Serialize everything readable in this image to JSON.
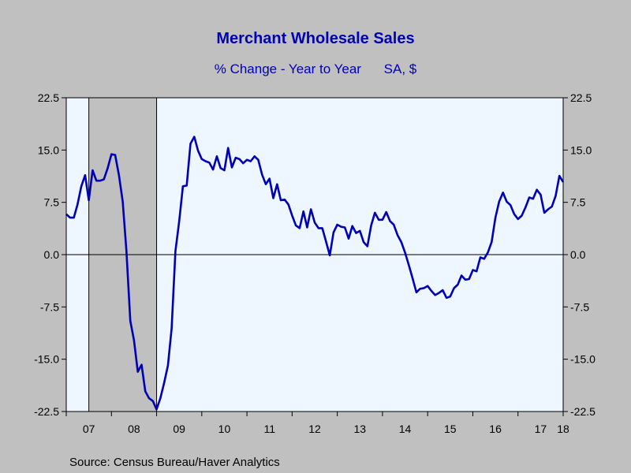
{
  "title": "Merchant Wholesale Sales",
  "subtitle_left": "% Change - Year to Year",
  "subtitle_right": "SA, $",
  "source": "Source:  Census Bureau/Haver Analytics",
  "colors": {
    "background": "#c0c0c0",
    "plot_background": "#eef6ff",
    "recession_shade": "#c0c0c0",
    "line": "#0000b4",
    "title_color": "#0000b4"
  },
  "chart_data": {
    "type": "line",
    "title": "Merchant Wholesale Sales",
    "subtitle": "% Change - Year to Year    SA, $",
    "xlabel": "",
    "ylabel": "",
    "ylim": [
      -22.5,
      22.5
    ],
    "y_ticks": [
      "22.5",
      "15.0",
      "7.5",
      "0.0",
      "-7.5",
      "-15.0",
      "-22.5"
    ],
    "y_tick_values": [
      22.5,
      15.0,
      7.5,
      0.0,
      -7.5,
      -15.0,
      -22.5
    ],
    "x_ticks": [
      "07",
      "08",
      "09",
      "10",
      "11",
      "12",
      "13",
      "14",
      "15",
      "16",
      "17",
      "18"
    ],
    "x_tick_values": [
      2007.0,
      2008.0,
      2009.0,
      2010.0,
      2011.0,
      2012.0,
      2013.0,
      2014.0,
      2015.0,
      2016.0,
      2017.0,
      2018.0
    ],
    "xlim": [
      2007.0,
      2018.0
    ],
    "grid": false,
    "zero_line": true,
    "recession_band": [
      2007.5,
      2009.0
    ],
    "series": [
      {
        "points": [
          [
            2007.0,
            5.8
          ],
          [
            2007.083,
            5.3
          ],
          [
            2007.167,
            5.3
          ],
          [
            2007.25,
            7.2
          ],
          [
            2007.333,
            9.8
          ],
          [
            2007.417,
            11.4
          ],
          [
            2007.5,
            7.8
          ],
          [
            2007.583,
            12.1
          ],
          [
            2007.667,
            10.6
          ],
          [
            2007.75,
            10.6
          ],
          [
            2007.833,
            10.8
          ],
          [
            2007.917,
            12.4
          ],
          [
            2008.0,
            14.4
          ],
          [
            2008.083,
            14.3
          ],
          [
            2008.167,
            11.4
          ],
          [
            2008.25,
            7.6
          ],
          [
            2008.333,
            0.5
          ],
          [
            2008.417,
            -9.5
          ],
          [
            2008.5,
            -12.3
          ],
          [
            2008.583,
            -16.8
          ],
          [
            2008.667,
            -15.8
          ],
          [
            2008.75,
            -19.6
          ],
          [
            2008.833,
            -20.6
          ],
          [
            2008.917,
            -21.0
          ],
          [
            2009.0,
            -22.2
          ],
          [
            2009.083,
            -20.6
          ],
          [
            2009.167,
            -18.4
          ],
          [
            2009.25,
            -15.9
          ],
          [
            2009.333,
            -10.6
          ],
          [
            2009.417,
            0.5
          ],
          [
            2009.5,
            4.8
          ],
          [
            2009.583,
            9.8
          ],
          [
            2009.667,
            9.9
          ],
          [
            2009.75,
            15.9
          ],
          [
            2009.833,
            16.9
          ],
          [
            2009.917,
            14.9
          ],
          [
            2010.0,
            13.7
          ],
          [
            2010.083,
            13.4
          ],
          [
            2010.167,
            13.2
          ],
          [
            2010.25,
            12.2
          ],
          [
            2010.333,
            14.1
          ],
          [
            2010.417,
            12.4
          ],
          [
            2010.5,
            12.1
          ],
          [
            2010.583,
            15.3
          ],
          [
            2010.667,
            12.5
          ],
          [
            2010.75,
            13.9
          ],
          [
            2010.833,
            13.7
          ],
          [
            2010.917,
            13.1
          ],
          [
            2011.0,
            13.6
          ],
          [
            2011.083,
            13.4
          ],
          [
            2011.167,
            14.1
          ],
          [
            2011.25,
            13.6
          ],
          [
            2011.333,
            11.5
          ],
          [
            2011.417,
            10.1
          ],
          [
            2011.5,
            10.9
          ],
          [
            2011.583,
            8.1
          ],
          [
            2011.667,
            10.1
          ],
          [
            2011.75,
            7.8
          ],
          [
            2011.833,
            7.9
          ],
          [
            2011.917,
            7.2
          ],
          [
            2012.0,
            5.6
          ],
          [
            2012.083,
            4.2
          ],
          [
            2012.167,
            3.8
          ],
          [
            2012.25,
            6.2
          ],
          [
            2012.333,
            3.9
          ],
          [
            2012.417,
            6.5
          ],
          [
            2012.5,
            4.6
          ],
          [
            2012.583,
            3.8
          ],
          [
            2012.667,
            3.8
          ],
          [
            2012.75,
            1.9
          ],
          [
            2012.833,
            -0.1
          ],
          [
            2012.917,
            3.2
          ],
          [
            2013.0,
            4.3
          ],
          [
            2013.083,
            4.0
          ],
          [
            2013.167,
            3.9
          ],
          [
            2013.25,
            2.3
          ],
          [
            2013.333,
            4.1
          ],
          [
            2013.417,
            3.1
          ],
          [
            2013.5,
            3.4
          ],
          [
            2013.583,
            1.8
          ],
          [
            2013.667,
            1.2
          ],
          [
            2013.75,
            4.2
          ],
          [
            2013.833,
            6.0
          ],
          [
            2013.917,
            5.0
          ],
          [
            2014.0,
            5.0
          ],
          [
            2014.083,
            6.1
          ],
          [
            2014.167,
            4.8
          ],
          [
            2014.25,
            4.3
          ],
          [
            2014.333,
            2.8
          ],
          [
            2014.417,
            1.8
          ],
          [
            2014.5,
            0.3
          ],
          [
            2014.583,
            -1.5
          ],
          [
            2014.667,
            -3.4
          ],
          [
            2014.75,
            -5.4
          ],
          [
            2014.833,
            -4.9
          ],
          [
            2014.917,
            -4.8
          ],
          [
            2015.0,
            -4.5
          ],
          [
            2015.083,
            -5.2
          ],
          [
            2015.167,
            -5.8
          ],
          [
            2015.25,
            -5.5
          ],
          [
            2015.333,
            -5.1
          ],
          [
            2015.417,
            -6.2
          ],
          [
            2015.5,
            -6.0
          ],
          [
            2015.583,
            -4.8
          ],
          [
            2015.667,
            -4.3
          ],
          [
            2015.75,
            -3.0
          ],
          [
            2015.833,
            -3.6
          ],
          [
            2015.917,
            -3.5
          ],
          [
            2016.0,
            -2.2
          ],
          [
            2016.083,
            -2.4
          ],
          [
            2016.167,
            -0.4
          ],
          [
            2016.25,
            -0.6
          ],
          [
            2016.333,
            0.3
          ],
          [
            2016.417,
            1.8
          ],
          [
            2016.5,
            5.3
          ],
          [
            2016.583,
            7.6
          ],
          [
            2016.667,
            8.9
          ],
          [
            2016.75,
            7.6
          ],
          [
            2016.833,
            7.1
          ],
          [
            2016.917,
            5.8
          ],
          [
            2017.0,
            5.1
          ],
          [
            2017.083,
            5.6
          ],
          [
            2017.167,
            6.8
          ],
          [
            2017.25,
            8.2
          ],
          [
            2017.333,
            8.0
          ],
          [
            2017.417,
            9.3
          ],
          [
            2017.5,
            8.6
          ],
          [
            2017.583,
            6.0
          ],
          [
            2017.667,
            6.5
          ],
          [
            2017.75,
            6.9
          ],
          [
            2017.833,
            8.4
          ],
          [
            2017.917,
            11.3
          ],
          [
            2018.0,
            10.4
          ]
        ]
      }
    ]
  }
}
